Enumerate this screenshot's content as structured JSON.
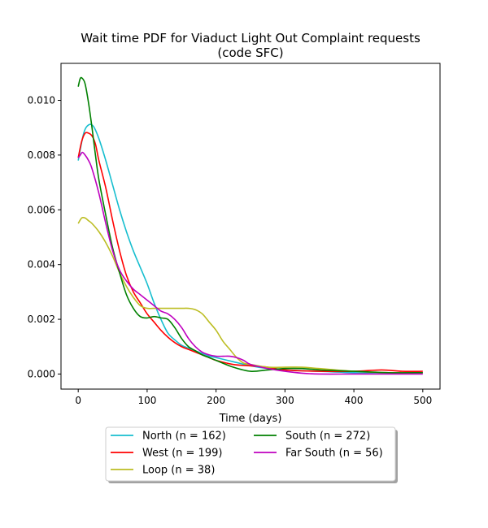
{
  "chart_data": {
    "type": "line",
    "title_line1": "Wait time PDF for Viaduct Light Out Complaint  requests",
    "title_line2": "(code SFC)",
    "xlabel": "Time (days)",
    "ylabel": "",
    "xlim": [
      -25,
      525
    ],
    "ylim": [
      -0.00055,
      0.01135
    ],
    "xticks": [
      0,
      100,
      200,
      300,
      400,
      500
    ],
    "xtick_labels": [
      "0",
      "100",
      "200",
      "300",
      "400",
      "500"
    ],
    "yticks": [
      0.0,
      0.002,
      0.004,
      0.006,
      0.008,
      0.01
    ],
    "ytick_labels": [
      "0.000",
      "0.002",
      "0.004",
      "0.006",
      "0.008",
      "0.010"
    ],
    "grid": false,
    "legend_placement": "below-center",
    "series": [
      {
        "name": "North (n = 162)",
        "color": "#17becf",
        "x": [
          0,
          8,
          15,
          22,
          30,
          40,
          50,
          60,
          70,
          80,
          90,
          100,
          110,
          120,
          130,
          140,
          150,
          160,
          170,
          180,
          190,
          200,
          225,
          250,
          275,
          300,
          350,
          400,
          450,
          500
        ],
        "y": [
          0.0078,
          0.0088,
          0.0091,
          0.00905,
          0.0086,
          0.0078,
          0.0069,
          0.006,
          0.0052,
          0.0045,
          0.0039,
          0.0033,
          0.0026,
          0.002,
          0.0015,
          0.00125,
          0.00105,
          0.00095,
          0.00085,
          0.00075,
          0.00065,
          0.0006,
          0.00045,
          0.0003,
          0.0002,
          0.00015,
          0.0001,
          5e-05,
          5e-05,
          5e-05
        ]
      },
      {
        "name": "West (n = 199)",
        "color": "#ff0000",
        "x": [
          0,
          5,
          10,
          15,
          20,
          25,
          30,
          40,
          50,
          60,
          70,
          80,
          90,
          100,
          110,
          120,
          130,
          140,
          150,
          160,
          170,
          180,
          190,
          200,
          225,
          250,
          275,
          300,
          350,
          400,
          440,
          470,
          500
        ],
        "y": [
          0.0079,
          0.0085,
          0.0088,
          0.0088,
          0.0087,
          0.0084,
          0.0078,
          0.0068,
          0.0056,
          0.0045,
          0.0036,
          0.003,
          0.0026,
          0.0022,
          0.0019,
          0.0016,
          0.00135,
          0.00115,
          0.001,
          0.0009,
          0.0008,
          0.0007,
          0.0006,
          0.0005,
          0.00035,
          0.0003,
          0.00025,
          0.00015,
          0.0001,
          0.0001,
          0.00015,
          0.0001,
          0.0001
        ]
      },
      {
        "name": "Loop (n = 38)",
        "color": "#bcbd22",
        "x": [
          0,
          5,
          10,
          15,
          20,
          30,
          40,
          50,
          60,
          70,
          80,
          90,
          100,
          110,
          120,
          130,
          140,
          150,
          160,
          170,
          180,
          190,
          200,
          210,
          220,
          230,
          240,
          250,
          275,
          300,
          325,
          350,
          400,
          450,
          500
        ],
        "y": [
          0.0055,
          0.0057,
          0.0057,
          0.0056,
          0.0055,
          0.0052,
          0.0048,
          0.0043,
          0.0037,
          0.0032,
          0.0028,
          0.0025,
          0.0024,
          0.0024,
          0.0024,
          0.0024,
          0.0024,
          0.0024,
          0.0024,
          0.00235,
          0.0022,
          0.0019,
          0.0016,
          0.0012,
          0.0009,
          0.0006,
          0.0004,
          0.00035,
          0.00025,
          0.00025,
          0.00025,
          0.0002,
          0.0001,
          5e-05,
          5e-05
        ]
      },
      {
        "name": "South (n = 272)",
        "color": "#008000",
        "x": [
          0,
          3,
          6,
          10,
          15,
          20,
          25,
          30,
          40,
          50,
          60,
          70,
          80,
          90,
          100,
          110,
          120,
          130,
          140,
          150,
          160,
          170,
          180,
          190,
          200,
          225,
          250,
          275,
          300,
          325,
          350,
          400,
          450,
          500
        ],
        "y": [
          0.0105,
          0.0108,
          0.0108,
          0.0106,
          0.0099,
          0.009,
          0.008,
          0.0071,
          0.0058,
          0.0046,
          0.0037,
          0.0029,
          0.0024,
          0.0021,
          0.00205,
          0.0021,
          0.00205,
          0.002,
          0.0017,
          0.0013,
          0.001,
          0.00085,
          0.0007,
          0.0006,
          0.0005,
          0.00025,
          0.0001,
          0.00015,
          0.0002,
          0.0002,
          0.00015,
          0.0001,
          5e-05,
          5e-05
        ]
      },
      {
        "name": "Far South (n = 56)",
        "color": "#bf00bf",
        "x": [
          0,
          3,
          6,
          10,
          15,
          20,
          30,
          40,
          50,
          60,
          70,
          80,
          90,
          100,
          110,
          120,
          130,
          140,
          150,
          160,
          170,
          180,
          190,
          200,
          210,
          220,
          230,
          240,
          250,
          275,
          300,
          325,
          350,
          400,
          450,
          500
        ],
        "y": [
          0.0079,
          0.008,
          0.0081,
          0.008,
          0.0078,
          0.0075,
          0.0066,
          0.0055,
          0.0045,
          0.0038,
          0.0034,
          0.0031,
          0.0029,
          0.0027,
          0.0025,
          0.0023,
          0.0022,
          0.002,
          0.0017,
          0.0013,
          0.001,
          0.0008,
          0.0007,
          0.00065,
          0.00065,
          0.00065,
          0.0006,
          0.0005,
          0.00035,
          0.0002,
          0.0001,
          3e-05,
          0.0,
          0.0,
          0.0,
          0.0
        ]
      }
    ]
  }
}
